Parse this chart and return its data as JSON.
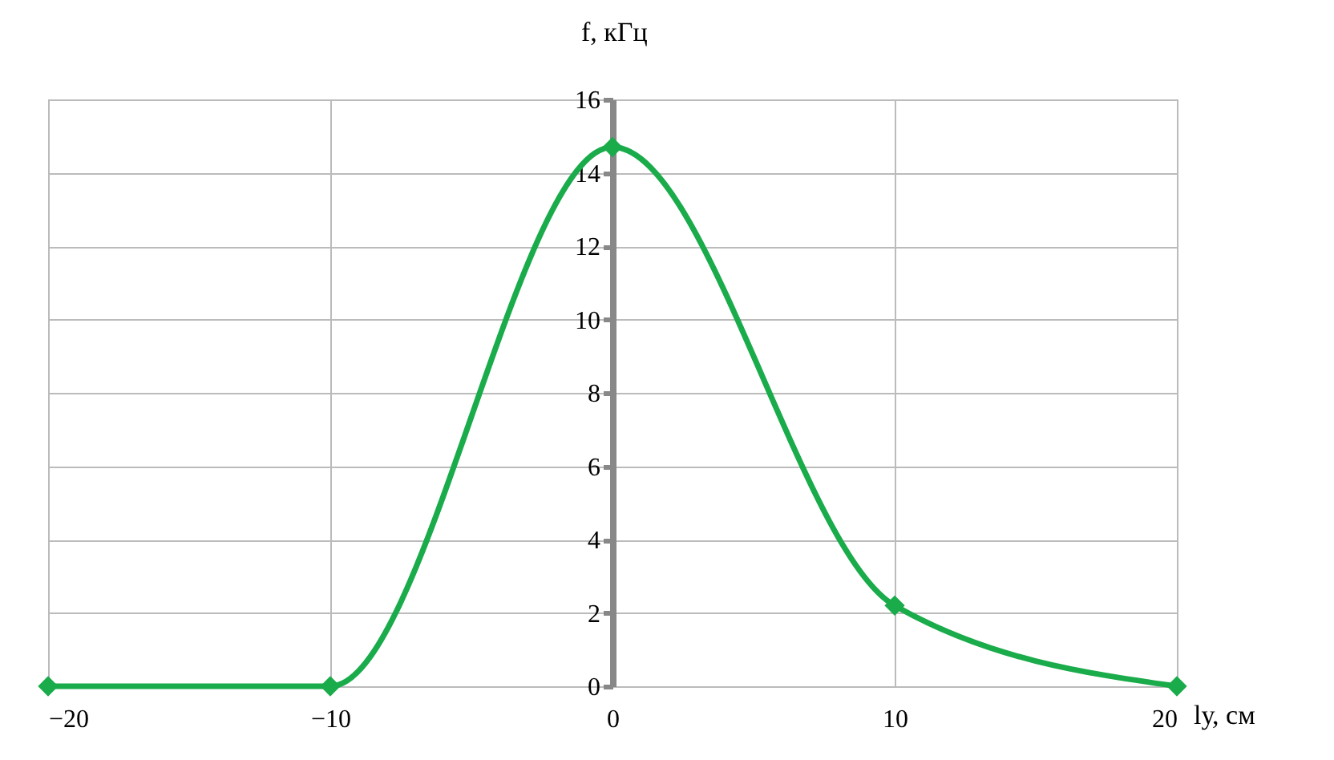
{
  "chart_data": {
    "type": "line",
    "xlabel": "lу, см",
    "ylabel": "f, кГц",
    "x": [
      -20,
      -10,
      0,
      10,
      20
    ],
    "series": [
      {
        "color": "#1aab4b",
        "values": [
          0,
          0,
          14.7,
          2.2,
          0
        ]
      }
    ],
    "xlim": [
      -20,
      20
    ],
    "xticks": [
      -20,
      -10,
      0,
      10,
      20
    ],
    "ylim": [
      0,
      16
    ],
    "yticks": [
      0,
      2,
      4,
      6,
      8,
      10,
      12,
      14,
      16
    ],
    "grid": true,
    "marker": "diamond",
    "line_style": "solid",
    "legend": false
  }
}
